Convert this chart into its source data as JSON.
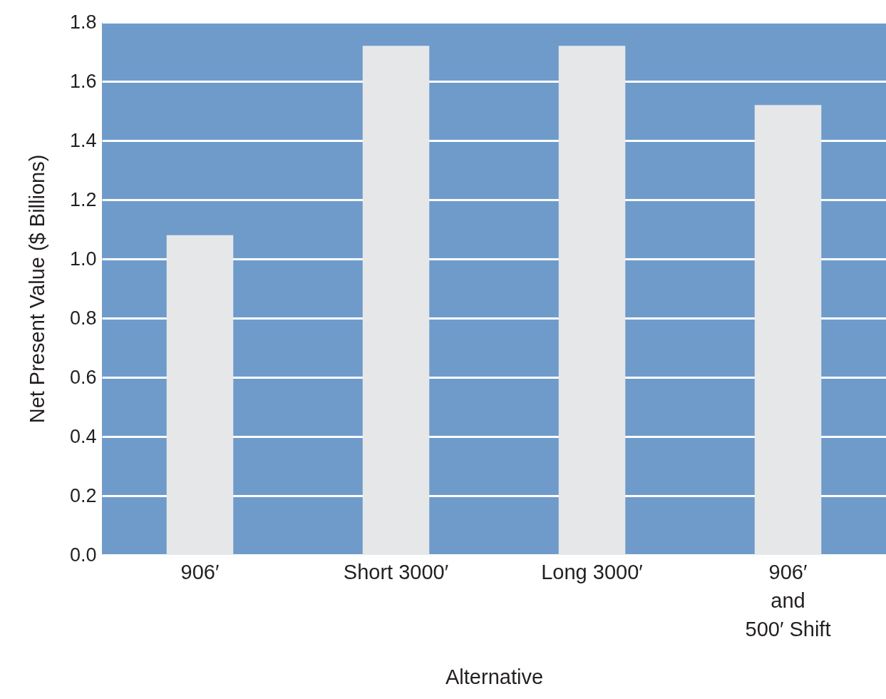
{
  "chart_data": {
    "type": "bar",
    "xlabel": "Alternative",
    "ylabel": "Net Present Value ($ Billions)",
    "categories": [
      "906′",
      "Short 3000′",
      "Long 3000′",
      "906′\nand\n500′ Shift"
    ],
    "values": [
      1.08,
      1.72,
      1.72,
      1.52
    ],
    "color": "#e6e7e9",
    "ylim": [
      0,
      1.8
    ],
    "yticks": [
      {
        "value": 0,
        "label": "0.0"
      },
      {
        "value": 0.2,
        "label": "0.2"
      },
      {
        "value": 0.4,
        "label": "0.4"
      },
      {
        "value": 0.6,
        "label": "0.6"
      },
      {
        "value": 0.8,
        "label": "0.8"
      },
      {
        "value": 1,
        "label": "1.0"
      },
      {
        "value": 1.2,
        "label": "1.2"
      },
      {
        "value": 1.4,
        "label": "1.4"
      },
      {
        "value": 1.6,
        "label": "1.6"
      },
      {
        "value": 1.8,
        "label": "1.8"
      }
    ],
    "grid": true
  }
}
